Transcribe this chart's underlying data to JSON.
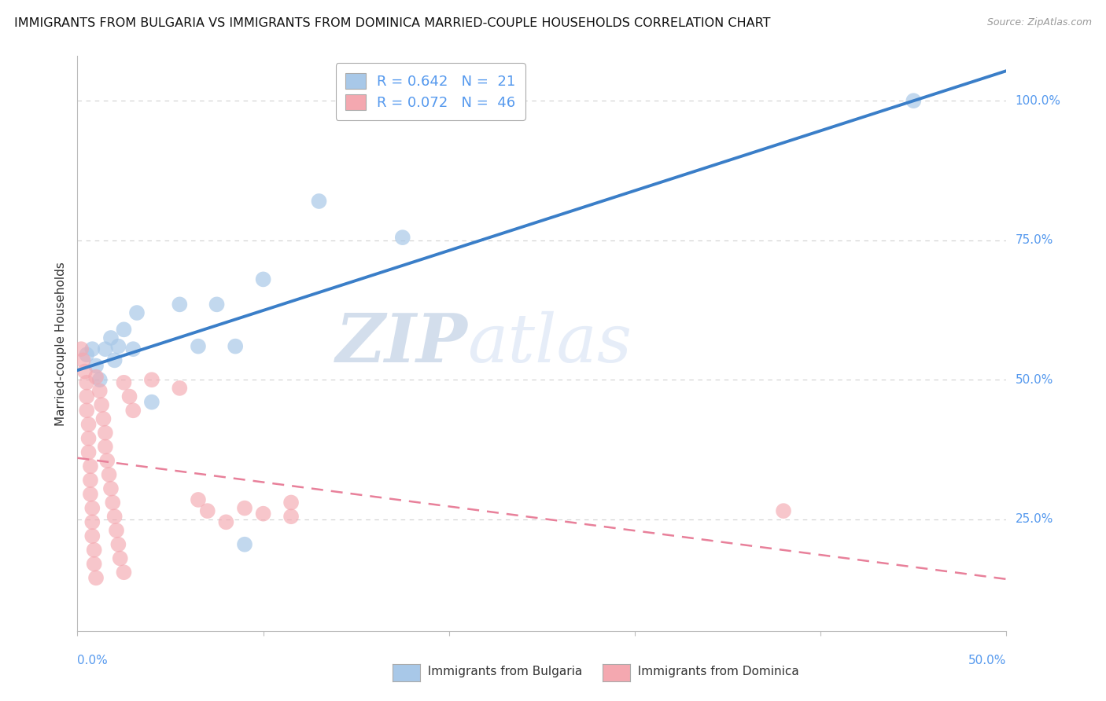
{
  "title": "IMMIGRANTS FROM BULGARIA VS IMMIGRANTS FROM DOMINICA MARRIED-COUPLE HOUSEHOLDS CORRELATION CHART",
  "source": "Source: ZipAtlas.com",
  "ylabel": "Married-couple Households",
  "yticks_labels": [
    "25.0%",
    "50.0%",
    "75.0%",
    "100.0%"
  ],
  "ytick_vals": [
    0.25,
    0.5,
    0.75,
    1.0
  ],
  "xlim": [
    0.0,
    0.5
  ],
  "ylim": [
    0.05,
    1.08
  ],
  "legend_entries": [
    {
      "label": "R = 0.642   N =  21",
      "color": "#a8c8e8"
    },
    {
      "label": "R = 0.072   N =  46",
      "color": "#f4a8b0"
    }
  ],
  "watermark_zip": "ZIP",
  "watermark_atlas": "atlas",
  "bulgaria_scatter": [
    [
      0.005,
      0.545
    ],
    [
      0.008,
      0.555
    ],
    [
      0.01,
      0.525
    ],
    [
      0.012,
      0.5
    ],
    [
      0.015,
      0.555
    ],
    [
      0.018,
      0.575
    ],
    [
      0.02,
      0.535
    ],
    [
      0.022,
      0.56
    ],
    [
      0.025,
      0.59
    ],
    [
      0.03,
      0.555
    ],
    [
      0.032,
      0.62
    ],
    [
      0.04,
      0.46
    ],
    [
      0.055,
      0.635
    ],
    [
      0.065,
      0.56
    ],
    [
      0.075,
      0.635
    ],
    [
      0.085,
      0.56
    ],
    [
      0.09,
      0.205
    ],
    [
      0.1,
      0.68
    ],
    [
      0.13,
      0.82
    ],
    [
      0.175,
      0.755
    ],
    [
      0.45,
      1.0
    ]
  ],
  "dominica_scatter": [
    [
      0.002,
      0.555
    ],
    [
      0.003,
      0.535
    ],
    [
      0.004,
      0.515
    ],
    [
      0.005,
      0.495
    ],
    [
      0.005,
      0.47
    ],
    [
      0.005,
      0.445
    ],
    [
      0.006,
      0.42
    ],
    [
      0.006,
      0.395
    ],
    [
      0.006,
      0.37
    ],
    [
      0.007,
      0.345
    ],
    [
      0.007,
      0.32
    ],
    [
      0.007,
      0.295
    ],
    [
      0.008,
      0.27
    ],
    [
      0.008,
      0.245
    ],
    [
      0.008,
      0.22
    ],
    [
      0.009,
      0.195
    ],
    [
      0.009,
      0.17
    ],
    [
      0.01,
      0.145
    ],
    [
      0.01,
      0.505
    ],
    [
      0.012,
      0.48
    ],
    [
      0.013,
      0.455
    ],
    [
      0.014,
      0.43
    ],
    [
      0.015,
      0.405
    ],
    [
      0.015,
      0.38
    ],
    [
      0.016,
      0.355
    ],
    [
      0.017,
      0.33
    ],
    [
      0.018,
      0.305
    ],
    [
      0.019,
      0.28
    ],
    [
      0.02,
      0.255
    ],
    [
      0.021,
      0.23
    ],
    [
      0.022,
      0.205
    ],
    [
      0.023,
      0.18
    ],
    [
      0.025,
      0.155
    ],
    [
      0.025,
      0.495
    ],
    [
      0.028,
      0.47
    ],
    [
      0.03,
      0.445
    ],
    [
      0.04,
      0.5
    ],
    [
      0.055,
      0.485
    ],
    [
      0.065,
      0.285
    ],
    [
      0.07,
      0.265
    ],
    [
      0.08,
      0.245
    ],
    [
      0.09,
      0.27
    ],
    [
      0.1,
      0.26
    ],
    [
      0.115,
      0.28
    ],
    [
      0.115,
      0.255
    ],
    [
      0.38,
      0.265
    ]
  ],
  "bulgaria_color": "#a8c8e8",
  "dominica_color": "#f4a8b0",
  "bulgaria_line_color": "#3a7ec8",
  "dominica_line_color": "#e8809a",
  "background_color": "#ffffff",
  "grid_color": "#d0d0d0",
  "axis_label_color": "#5599ee",
  "title_fontsize": 11.5,
  "watermark_color": "#d0dff0",
  "watermark_alpha": 0.7
}
